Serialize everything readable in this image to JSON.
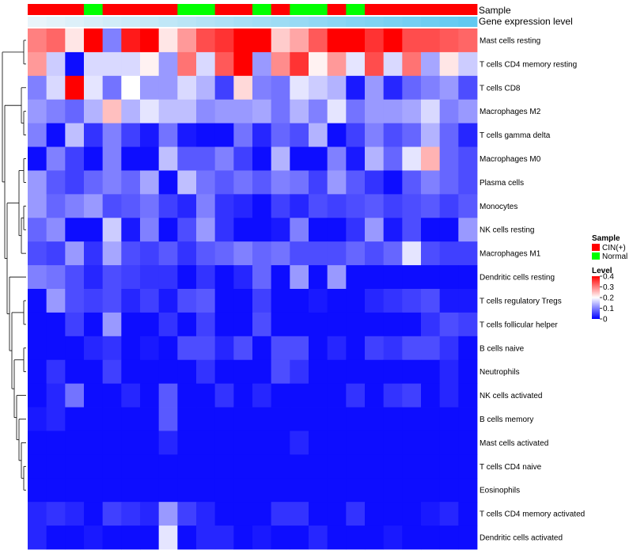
{
  "chart_data": {
    "type": "heatmap",
    "title": "",
    "track_labels": {
      "sample": "Sample",
      "expression": "Gene expression level"
    },
    "columns": 24,
    "sample_groups": [
      "CIN(+)",
      "CIN(+)",
      "CIN(+)",
      "Normal",
      "CIN(+)",
      "CIN(+)",
      "CIN(+)",
      "CIN(+)",
      "Normal",
      "Normal",
      "CIN(+)",
      "CIN(+)",
      "Normal",
      "CIN(+)",
      "Normal",
      "Normal",
      "CIN(+)",
      "Normal",
      "CIN(+)",
      "CIN(+)",
      "CIN(+)",
      "CIN(+)",
      "CIN(+)",
      "CIN(+)"
    ],
    "expression_level": [
      0.05,
      0.09,
      0.13,
      0.17,
      0.21,
      0.25,
      0.29,
      0.33,
      0.37,
      0.41,
      0.45,
      0.49,
      0.53,
      0.57,
      0.61,
      0.65,
      0.69,
      0.73,
      0.77,
      0.81,
      0.85,
      0.89,
      0.93,
      0.97
    ],
    "rows": [
      "Mast cells resting",
      "T cells CD4 memory resting",
      "T cells CD8",
      "Macrophages M2",
      "T cells gamma delta",
      "Macrophages M0",
      "Plasma cells",
      "Monocytes",
      "NK cells resting",
      "Macrophages M1",
      "Dendritic cells resting",
      "T cells regulatory  Tregs",
      "T cells follicular helper",
      "B cells naive",
      "Neutrophils",
      "NK cells activated",
      "B cells memory",
      "Mast cells activated",
      "T cells CD4 naive",
      "Eosinophils",
      "T cells CD4 memory activated",
      "Dendritic cells activated"
    ],
    "values": [
      [
        0.3,
        0.32,
        0.22,
        0.4,
        0.1,
        0.38,
        0.4,
        0.22,
        0.28,
        0.34,
        0.36,
        0.4,
        0.4,
        0.24,
        0.27,
        0.33,
        0.4,
        0.4,
        0.36,
        0.4,
        0.34,
        0.34,
        0.33,
        0.32
      ],
      [
        0.28,
        0.16,
        0.01,
        0.17,
        0.17,
        0.17,
        0.21,
        0.12,
        0.31,
        0.17,
        0.33,
        0.4,
        0.12,
        0.29,
        0.36,
        0.21,
        0.28,
        0.18,
        0.34,
        0.17,
        0.31,
        0.13,
        0.22,
        0.16
      ],
      [
        0.1,
        0.17,
        0.4,
        0.18,
        0.09,
        0.2,
        0.12,
        0.12,
        0.17,
        0.14,
        0.05,
        0.23,
        0.1,
        0.09,
        0.18,
        0.16,
        0.14,
        0.02,
        0.12,
        0.03,
        0.08,
        0.1,
        0.12,
        0.06
      ],
      [
        0.12,
        0.1,
        0.08,
        0.14,
        0.25,
        0.14,
        0.18,
        0.15,
        0.15,
        0.11,
        0.12,
        0.12,
        0.13,
        0.09,
        0.14,
        0.1,
        0.18,
        0.09,
        0.12,
        0.12,
        0.13,
        0.17,
        0.1,
        0.12
      ],
      [
        0.1,
        0.01,
        0.15,
        0.04,
        0.1,
        0.05,
        0.02,
        0.09,
        0.02,
        0.01,
        0.01,
        0.09,
        0.03,
        0.08,
        0.06,
        0.14,
        0.01,
        0.05,
        0.1,
        0.06,
        0.08,
        0.14,
        0.08,
        0.03
      ],
      [
        0.01,
        0.1,
        0.05,
        0.01,
        0.1,
        0.01,
        0.01,
        0.15,
        0.07,
        0.07,
        0.1,
        0.05,
        0.01,
        0.14,
        0.01,
        0.01,
        0.1,
        0.02,
        0.14,
        0.08,
        0.18,
        0.26,
        0.08,
        0.06
      ],
      [
        0.12,
        0.07,
        0.05,
        0.08,
        0.1,
        0.08,
        0.13,
        0.01,
        0.15,
        0.09,
        0.07,
        0.09,
        0.07,
        0.1,
        0.09,
        0.05,
        0.12,
        0.07,
        0.04,
        0.01,
        0.07,
        0.1,
        0.08,
        0.06
      ],
      [
        0.12,
        0.08,
        0.1,
        0.12,
        0.06,
        0.07,
        0.09,
        0.05,
        0.03,
        0.1,
        0.04,
        0.03,
        0.01,
        0.05,
        0.03,
        0.06,
        0.05,
        0.06,
        0.07,
        0.05,
        0.06,
        0.07,
        0.05,
        0.07
      ],
      [
        0.08,
        0.11,
        0.01,
        0.01,
        0.16,
        0.02,
        0.1,
        0.01,
        0.06,
        0.12,
        0.04,
        0.01,
        0.01,
        0.02,
        0.1,
        0.01,
        0.01,
        0.04,
        0.12,
        0.02,
        0.06,
        0.01,
        0.01,
        0.12
      ],
      [
        0.06,
        0.05,
        0.12,
        0.04,
        0.13,
        0.06,
        0.05,
        0.07,
        0.04,
        0.07,
        0.08,
        0.1,
        0.08,
        0.09,
        0.06,
        0.06,
        0.06,
        0.08,
        0.06,
        0.08,
        0.18,
        0.06,
        0.05,
        0.05
      ],
      [
        0.1,
        0.09,
        0.06,
        0.03,
        0.06,
        0.05,
        0.04,
        0.04,
        0.01,
        0.04,
        0.01,
        0.03,
        0.08,
        0.01,
        0.12,
        0.01,
        0.12,
        0.01,
        0.01,
        0.01,
        0.01,
        0.01,
        0.01,
        0.01
      ],
      [
        0.01,
        0.12,
        0.06,
        0.05,
        0.06,
        0.03,
        0.05,
        0.02,
        0.06,
        0.07,
        0.01,
        0.01,
        0.05,
        0.01,
        0.01,
        0.02,
        0.01,
        0.01,
        0.03,
        0.04,
        0.05,
        0.06,
        0.02,
        0.02
      ],
      [
        0.01,
        0.01,
        0.05,
        0.01,
        0.12,
        0.01,
        0.01,
        0.04,
        0.01,
        0.05,
        0.01,
        0.01,
        0.06,
        0.01,
        0.01,
        0.01,
        0.01,
        0.01,
        0.01,
        0.01,
        0.01,
        0.04,
        0.06,
        0.05
      ],
      [
        0.01,
        0.01,
        0.01,
        0.03,
        0.04,
        0.01,
        0.02,
        0.01,
        0.06,
        0.06,
        0.03,
        0.06,
        0.01,
        0.06,
        0.06,
        0.01,
        0.03,
        0.01,
        0.05,
        0.04,
        0.06,
        0.06,
        0.04,
        0.01
      ],
      [
        0.01,
        0.04,
        0.01,
        0.01,
        0.05,
        0.01,
        0.01,
        0.01,
        0.01,
        0.04,
        0.01,
        0.01,
        0.01,
        0.06,
        0.04,
        0.01,
        0.01,
        0.01,
        0.01,
        0.01,
        0.01,
        0.01,
        0.03,
        0.01
      ],
      [
        0.01,
        0.03,
        0.09,
        0.01,
        0.01,
        0.03,
        0.01,
        0.07,
        0.01,
        0.01,
        0.04,
        0.01,
        0.03,
        0.01,
        0.01,
        0.01,
        0.01,
        0.04,
        0.01,
        0.04,
        0.05,
        0.01,
        0.03,
        0.01
      ],
      [
        0.02,
        0.03,
        0.01,
        0.01,
        0.01,
        0.01,
        0.01,
        0.07,
        0.01,
        0.01,
        0.01,
        0.01,
        0.01,
        0.01,
        0.01,
        0.01,
        0.01,
        0.01,
        0.01,
        0.01,
        0.01,
        0.01,
        0.01,
        0.01
      ],
      [
        0.01,
        0.01,
        0.01,
        0.01,
        0.01,
        0.01,
        0.01,
        0.03,
        0.01,
        0.01,
        0.01,
        0.01,
        0.01,
        0.01,
        0.03,
        0.01,
        0.01,
        0.01,
        0.01,
        0.01,
        0.01,
        0.01,
        0.01,
        0.01
      ],
      [
        0.01,
        0.01,
        0.01,
        0.01,
        0.01,
        0.01,
        0.01,
        0.01,
        0.01,
        0.01,
        0.01,
        0.01,
        0.01,
        0.01,
        0.01,
        0.01,
        0.01,
        0.01,
        0.01,
        0.01,
        0.01,
        0.01,
        0.01,
        0.01
      ],
      [
        0.01,
        0.01,
        0.01,
        0.01,
        0.01,
        0.01,
        0.01,
        0.01,
        0.01,
        0.01,
        0.01,
        0.01,
        0.01,
        0.01,
        0.01,
        0.01,
        0.01,
        0.01,
        0.01,
        0.01,
        0.01,
        0.01,
        0.01,
        0.01
      ],
      [
        0.03,
        0.04,
        0.03,
        0.01,
        0.05,
        0.04,
        0.03,
        0.12,
        0.05,
        0.03,
        0.01,
        0.01,
        0.01,
        0.04,
        0.04,
        0.01,
        0.01,
        0.04,
        0.01,
        0.01,
        0.01,
        0.02,
        0.03,
        0.01
      ],
      [
        0.03,
        0.01,
        0.01,
        0.02,
        0.01,
        0.01,
        0.01,
        0.18,
        0.01,
        0.03,
        0.03,
        0.01,
        0.02,
        0.01,
        0.01,
        0.03,
        0.01,
        0.01,
        0.01,
        0.02,
        0.01,
        0.01,
        0.01,
        0.01
      ]
    ],
    "legend": {
      "sample_title": "Sample",
      "sample_items": [
        {
          "label": "CIN(+)",
          "color": "#ff0000"
        },
        {
          "label": "Normal",
          "color": "#00ff00"
        }
      ],
      "level_title": "Level",
      "level_ticks": [
        "0.4",
        "0.3",
        "0.2",
        "0.1",
        "0"
      ],
      "level_tick_values": [
        0.4,
        0.3,
        0.2,
        0.1,
        0
      ],
      "level_range": [
        0,
        0.4
      ]
    },
    "colors": {
      "low": "#0000ff",
      "mid": "#ffffff",
      "high": "#ff0000",
      "expr_low": "#f0f6fa",
      "expr_high": "#5ec8f0"
    }
  }
}
